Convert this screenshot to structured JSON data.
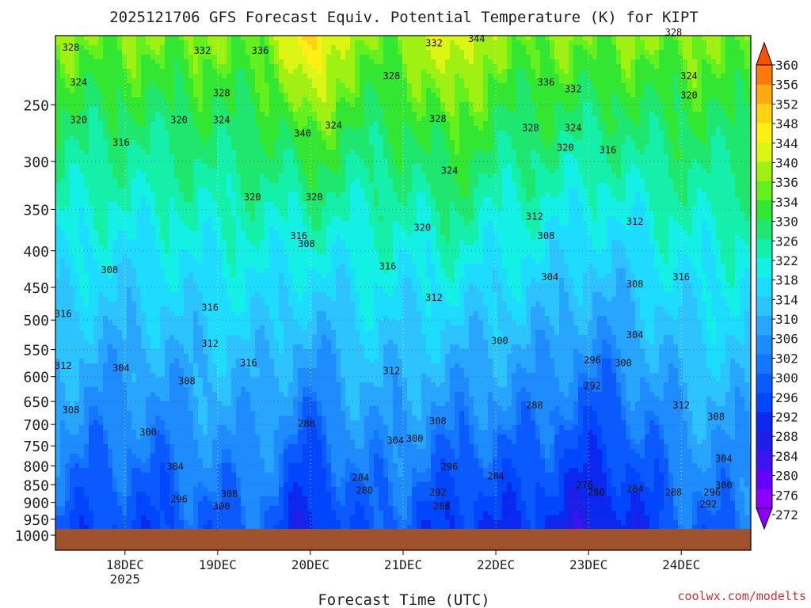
{
  "chart_data": {
    "type": "heatmap",
    "title": "2025121706 GFS Forecast Equiv. Potential Temperature (K) for KIPT",
    "xlabel": "Forecast Time (UTC)",
    "ylabel": "",
    "credit": "coolwx.com/modelts",
    "y_scale": "log",
    "y_reversed": true,
    "ylim": [
      1000,
      200
    ],
    "xlim": [
      "2025-12-17 06",
      "2025-12-24 18"
    ],
    "y_ticks": [
      250,
      300,
      350,
      400,
      450,
      500,
      550,
      600,
      650,
      700,
      750,
      800,
      850,
      900,
      950,
      1000
    ],
    "x_ticks": [
      {
        "label": "18DEC",
        "sublabel": "2025",
        "time": "2025-12-18 00"
      },
      {
        "label": "19DEC",
        "sublabel": "",
        "time": "2025-12-19 00"
      },
      {
        "label": "20DEC",
        "sublabel": "",
        "time": "2025-12-20 00"
      },
      {
        "label": "21DEC",
        "sublabel": "",
        "time": "2025-12-21 00"
      },
      {
        "label": "22DEC",
        "sublabel": "",
        "time": "2025-12-22 00"
      },
      {
        "label": "23DEC",
        "sublabel": "",
        "time": "2025-12-23 00"
      },
      {
        "label": "24DEC",
        "sublabel": "",
        "time": "2025-12-24 00"
      }
    ],
    "colorbar": {
      "levels": [
        272,
        276,
        280,
        284,
        288,
        292,
        296,
        300,
        302,
        306,
        310,
        314,
        318,
        322,
        326,
        330,
        334,
        336,
        340,
        344,
        348,
        352,
        356,
        360
      ],
      "colors": [
        "#8c00ff",
        "#6400ff",
        "#3c14f0",
        "#1e1ee6",
        "#0a28f0",
        "#0046ff",
        "#0a5aff",
        "#1476ff",
        "#1e8cff",
        "#28a5ff",
        "#2dc3ff",
        "#1edcff",
        "#14f0e6",
        "#14f0aa",
        "#1ee66e",
        "#32e632",
        "#64f01e",
        "#a0f014",
        "#dcf514",
        "#fff014",
        "#ffd214",
        "#ffaa14",
        "#ff7a0a",
        "#ff5000"
      ],
      "extend": "both"
    },
    "contour_labels": [
      {
        "v": 328,
        "t": "2025-12-17 10",
        "p": 210
      },
      {
        "v": 324,
        "t": "2025-12-17 12",
        "p": 235
      },
      {
        "v": 320,
        "t": "2025-12-17 12",
        "p": 265
      },
      {
        "v": 316,
        "t": "2025-12-17 23",
        "p": 285
      },
      {
        "v": 332,
        "t": "2025-12-18 20",
        "p": 212
      },
      {
        "v": 336,
        "t": "2025-12-19 11",
        "p": 212
      },
      {
        "v": 328,
        "t": "2025-12-19 01",
        "p": 243
      },
      {
        "v": 324,
        "t": "2025-12-19 01",
        "p": 265
      },
      {
        "v": 320,
        "t": "2025-12-18 14",
        "p": 265
      },
      {
        "v": 340,
        "t": "2025-12-19 22",
        "p": 277
      },
      {
        "v": 324,
        "t": "2025-12-20 06",
        "p": 270
      },
      {
        "v": 320,
        "t": "2025-12-19 09",
        "p": 340
      },
      {
        "v": 320,
        "t": "2025-12-20 01",
        "p": 340
      },
      {
        "v": 332,
        "t": "2025-12-21 08",
        "p": 207
      },
      {
        "v": 344,
        "t": "2025-12-21 19",
        "p": 204
      },
      {
        "v": 328,
        "t": "2025-12-20 21",
        "p": 230
      },
      {
        "v": 328,
        "t": "2025-12-21 09",
        "p": 264
      },
      {
        "v": 324,
        "t": "2025-12-21 12",
        "p": 312
      },
      {
        "v": 320,
        "t": "2025-12-21 05",
        "p": 375
      },
      {
        "v": 336,
        "t": "2025-12-22 13",
        "p": 235
      },
      {
        "v": 332,
        "t": "2025-12-22 20",
        "p": 240
      },
      {
        "v": 328,
        "t": "2025-12-22 09",
        "p": 272
      },
      {
        "v": 324,
        "t": "2025-12-22 20",
        "p": 272
      },
      {
        "v": 320,
        "t": "2025-12-22 18",
        "p": 290
      },
      {
        "v": 316,
        "t": "2025-12-23 05",
        "p": 292
      },
      {
        "v": 312,
        "t": "2025-12-22 10",
        "p": 362
      },
      {
        "v": 312,
        "t": "2025-12-23 12",
        "p": 368
      },
      {
        "v": 308,
        "t": "2025-12-22 13",
        "p": 385
      },
      {
        "v": 304,
        "t": "2025-12-22 14",
        "p": 440
      },
      {
        "v": 308,
        "t": "2025-12-23 12",
        "p": 450
      },
      {
        "v": 316,
        "t": "2025-12-24 00",
        "p": 440
      },
      {
        "v": 328,
        "t": "2025-12-23 22",
        "p": 200
      },
      {
        "v": 324,
        "t": "2025-12-24 02",
        "p": 230
      },
      {
        "v": 320,
        "t": "2025-12-24 02",
        "p": 245
      },
      {
        "v": 316,
        "t": "2025-12-19 21",
        "p": 385
      },
      {
        "v": 308,
        "t": "2025-12-19 23",
        "p": 395
      },
      {
        "v": 316,
        "t": "2025-12-20 20",
        "p": 425
      },
      {
        "v": 312,
        "t": "2025-12-21 08",
        "p": 470
      },
      {
        "v": 308,
        "t": "2025-12-17 20",
        "p": 430
      },
      {
        "v": 316,
        "t": "2025-12-18 22",
        "p": 485
      },
      {
        "v": 312,
        "t": "2025-12-18 22",
        "p": 545
      },
      {
        "v": 316,
        "t": "2025-12-19 08",
        "p": 580
      },
      {
        "v": 316,
        "t": "2025-12-17 08",
        "p": 495
      },
      {
        "v": 312,
        "t": "2025-12-17 08",
        "p": 585
      },
      {
        "v": 304,
        "t": "2025-12-17 23",
        "p": 590
      },
      {
        "v": 308,
        "t": "2025-12-18 16",
        "p": 615
      },
      {
        "v": 300,
        "t": "2025-12-22 01",
        "p": 540
      },
      {
        "v": 296,
        "t": "2025-12-23 01",
        "p": 575
      },
      {
        "v": 300,
        "t": "2025-12-23 09",
        "p": 580
      },
      {
        "v": 292,
        "t": "2025-12-23 01",
        "p": 625
      },
      {
        "v": 304,
        "t": "2025-12-23 12",
        "p": 530
      },
      {
        "v": 312,
        "t": "2025-12-20 21",
        "p": 595
      },
      {
        "v": 312,
        "t": "2025-12-24 00",
        "p": 665
      },
      {
        "v": 308,
        "t": "2025-12-24 09",
        "p": 690
      },
      {
        "v": 304,
        "t": "2025-12-24 11",
        "p": 790
      },
      {
        "v": 308,
        "t": "2025-12-17 10",
        "p": 675
      },
      {
        "v": 300,
        "t": "2025-12-18 06",
        "p": 725
      },
      {
        "v": 304,
        "t": "2025-12-18 13",
        "p": 810
      },
      {
        "v": 296,
        "t": "2025-12-18 14",
        "p": 900
      },
      {
        "v": 308,
        "t": "2025-12-19 03",
        "p": 885
      },
      {
        "v": 300,
        "t": "2025-12-19 01",
        "p": 920
      },
      {
        "v": 288,
        "t": "2025-12-19 23",
        "p": 705
      },
      {
        "v": 284,
        "t": "2025-12-20 13",
        "p": 840
      },
      {
        "v": 280,
        "t": "2025-12-20 14",
        "p": 875
      },
      {
        "v": 304,
        "t": "2025-12-20 22",
        "p": 745
      },
      {
        "v": 300,
        "t": "2025-12-21 03",
        "p": 740
      },
      {
        "v": 308,
        "t": "2025-12-21 09",
        "p": 700
      },
      {
        "v": 296,
        "t": "2025-12-21 12",
        "p": 810
      },
      {
        "v": 292,
        "t": "2025-12-21 09",
        "p": 880
      },
      {
        "v": 288,
        "t": "2025-12-21 10",
        "p": 920
      },
      {
        "v": 288,
        "t": "2025-12-22 10",
        "p": 665
      },
      {
        "v": 284,
        "t": "2025-12-22 00",
        "p": 835
      },
      {
        "v": 276,
        "t": "2025-12-22 23",
        "p": 860
      },
      {
        "v": 280,
        "t": "2025-12-23 02",
        "p": 880
      },
      {
        "v": 284,
        "t": "2025-12-23 12",
        "p": 870
      },
      {
        "v": 288,
        "t": "2025-12-23 22",
        "p": 880
      },
      {
        "v": 296,
        "t": "2025-12-24 08",
        "p": 880
      },
      {
        "v": 300,
        "t": "2025-12-24 11",
        "p": 860
      },
      {
        "v": 292,
        "t": "2025-12-24 07",
        "p": 915
      }
    ],
    "ground": {
      "color": "#a0522d",
      "surface_pressure_min": 965,
      "surface_pressure_max": 985
    }
  }
}
